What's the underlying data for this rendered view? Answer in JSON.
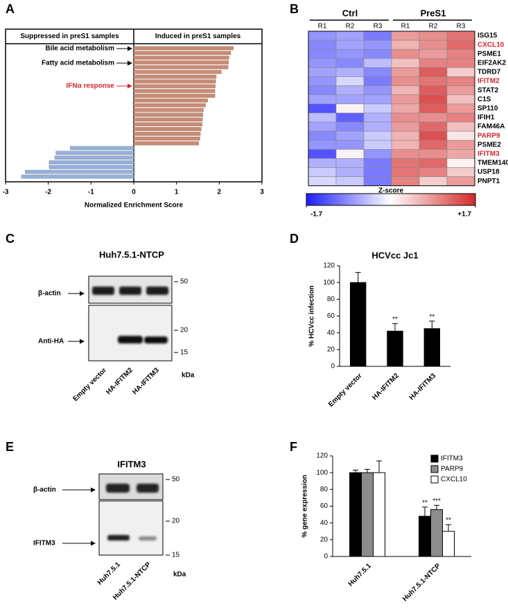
{
  "chart_data": [
    {
      "panel": "A",
      "type": "bar",
      "orientation": "horizontal",
      "headers": [
        "Suppressed in preS1 samples",
        "Induced in preS1 samples"
      ],
      "annotations": [
        {
          "text": "Bile acid metabolism",
          "color": "#000000"
        },
        {
          "text": "Fatty acid metabolism",
          "color": "#000000"
        },
        {
          "text": "IFNα response",
          "color": "#d9262b"
        }
      ],
      "xlabel": "Normalized Enrichment Score",
      "values": [
        2.33,
        2.27,
        2.23,
        2.22,
        2.21,
        2.05,
        1.93,
        1.92,
        1.91,
        1.9,
        1.9,
        1.73,
        1.68,
        1.63,
        1.62,
        1.61,
        1.6,
        1.58,
        1.56,
        1.55,
        1.52,
        -1.49,
        -1.82,
        -1.85,
        -1.98,
        -1.98,
        -2.54,
        -2.63
      ],
      "color_positive": "#c98b74",
      "color_negative": "#92b1e0",
      "xlim": [
        -3,
        3
      ],
      "xticks": [
        -3,
        -2,
        -1,
        0,
        1,
        2,
        3
      ]
    },
    {
      "panel": "B",
      "type": "heatmap",
      "column_groups": [
        {
          "name": "Ctrl",
          "columns": [
            "R1",
            "R2",
            "R3"
          ]
        },
        {
          "name": "PreS1",
          "columns": [
            "R1",
            "R2",
            "R3"
          ]
        }
      ],
      "rows": [
        "ISG15",
        "CXCL10",
        "PSME1",
        "EIF2AK2",
        "TDRD7",
        "IFITM2",
        "STAT2",
        "C1S",
        "SP110",
        "IFIH1",
        "FAM46A",
        "PARP9",
        "PSME2",
        "IFITM3",
        "TMEM140",
        "USP18",
        "PNPT1"
      ],
      "highlight_rows": [
        1,
        5,
        11,
        13
      ],
      "highlight_color": "#d9262b",
      "values": [
        [
          -0.8,
          -0.7,
          -1.0,
          0.8,
          0.9,
          1.1
        ],
        [
          -0.9,
          -0.7,
          -0.8,
          0.6,
          0.9,
          1.2
        ],
        [
          -0.9,
          -0.8,
          -0.9,
          0.9,
          0.8,
          1.0
        ],
        [
          -0.8,
          -0.9,
          -0.5,
          0.5,
          1.0,
          1.0
        ],
        [
          -0.7,
          -0.6,
          -0.9,
          0.8,
          1.3,
          0.4
        ],
        [
          -0.8,
          -0.3,
          -1.0,
          0.9,
          1.1,
          1.0
        ],
        [
          -0.9,
          -0.6,
          -0.8,
          0.6,
          1.3,
          0.8
        ],
        [
          -0.7,
          -0.7,
          -0.7,
          0.8,
          1.4,
          0.5
        ],
        [
          -1.3,
          0.1,
          -0.4,
          0.7,
          1.3,
          0.8
        ],
        [
          -0.5,
          -1.2,
          -0.6,
          0.9,
          0.9,
          1.0
        ],
        [
          -0.7,
          -0.9,
          -0.6,
          0.8,
          1.2,
          0.5
        ],
        [
          -0.9,
          -0.7,
          -0.4,
          0.6,
          1.4,
          0.2
        ],
        [
          -0.8,
          -0.8,
          -0.4,
          0.6,
          1.2,
          0.8
        ],
        [
          -1.3,
          0.1,
          -0.8,
          0.9,
          0.9,
          0.7
        ],
        [
          -0.6,
          -0.6,
          -1.0,
          1.1,
          1.2,
          0.1
        ],
        [
          -0.4,
          -0.6,
          -1.0,
          1.1,
          1.0,
          0.4
        ],
        [
          -0.3,
          -0.4,
          -1.0,
          1.0,
          0.4,
          0.8
        ]
      ],
      "colormap": [
        "#1e1eff",
        "#ffffff",
        "#d42a2a"
      ],
      "zlim": [
        -1.7,
        1.7
      ],
      "colorbar_label": "Z-score",
      "colorbar_ticks": [
        -1.7,
        {
          "value": 1.7,
          "label": "+1.7"
        }
      ]
    },
    {
      "panel": "D",
      "type": "bar",
      "title": "HCVcc Jc1",
      "ylabel": "% HCVcc infection",
      "categories": [
        "Empty vector",
        "HA-IFITM2",
        "HA-IFITM3"
      ],
      "values": [
        100,
        42,
        45
      ],
      "errors": [
        12,
        9,
        9
      ],
      "significance": [
        null,
        "**",
        "**"
      ],
      "color": "#000000",
      "ylim": [
        0,
        120
      ],
      "yticks": [
        0,
        20,
        40,
        60,
        80,
        100,
        120
      ]
    },
    {
      "panel": "F",
      "type": "bar",
      "ylabel": "% gene expression",
      "categories": [
        "Huh7.5.1",
        "Huh7.5.1-NTCP"
      ],
      "series": [
        {
          "name": "IFITM3",
          "color": "#000000",
          "values": [
            100,
            48
          ],
          "errors": [
            3,
            11
          ],
          "significance": [
            null,
            "**"
          ]
        },
        {
          "name": "PARP9",
          "color": "#8c8c8c",
          "values": [
            100,
            56
          ],
          "errors": [
            4,
            5
          ],
          "significance": [
            null,
            "***"
          ]
        },
        {
          "name": "CXCL10",
          "color": "#ffffff",
          "values": [
            100,
            30
          ],
          "errors": [
            14,
            8
          ],
          "significance": [
            null,
            "**"
          ]
        }
      ],
      "ylim": [
        0,
        120
      ],
      "yticks": [
        0,
        20,
        40,
        60,
        80,
        100,
        120
      ]
    }
  ],
  "blots": [
    {
      "panel": "C",
      "title": "Huh7.5.1-NTCP",
      "rows": [
        "β-actin",
        "Anti-HA"
      ],
      "markers": [
        50,
        20,
        15
      ],
      "unit": "kDa",
      "lanes": [
        "Empty vector",
        "HA-IFITM2",
        "HA-IFITM3"
      ]
    },
    {
      "panel": "E",
      "title": "IFITM3",
      "rows": [
        "β-actin",
        "IFITM3"
      ],
      "markers": [
        50,
        20,
        15
      ],
      "unit": "kDa",
      "lanes": [
        "Huh7.5.1",
        "Huh7.5.1-NTCP"
      ]
    }
  ]
}
